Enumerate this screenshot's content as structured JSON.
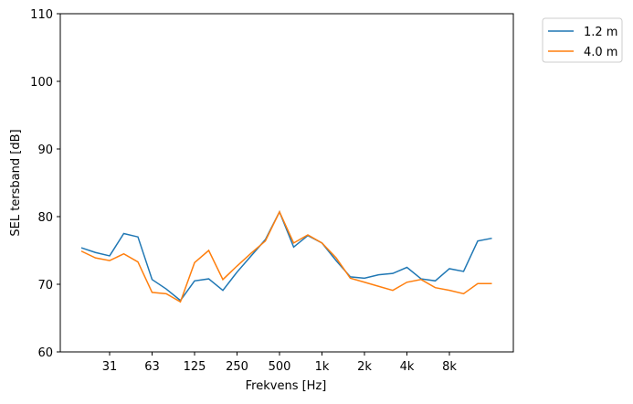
{
  "chart_data": {
    "type": "line",
    "xlabel": "Frekvens [Hz]",
    "ylabel": "SEL tersband [dB]",
    "ylim": [
      60,
      110
    ],
    "yticks": [
      60,
      70,
      80,
      90,
      100,
      110
    ],
    "x_bands": [
      "20",
      "25",
      "31.5",
      "40",
      "50",
      "63",
      "80",
      "100",
      "125",
      "160",
      "200",
      "250",
      "315",
      "400",
      "500",
      "630",
      "800",
      "1k",
      "1.25k",
      "1.6k",
      "2k",
      "2.5k",
      "3.15k",
      "4k",
      "5k",
      "6.3k",
      "8k",
      "10k",
      "12.5k",
      "16k"
    ],
    "xticks": [
      {
        "label": "31",
        "band": 2
      },
      {
        "label": "63",
        "band": 5
      },
      {
        "label": "125",
        "band": 8
      },
      {
        "label": "250",
        "band": 11
      },
      {
        "label": "500",
        "band": 14
      },
      {
        "label": "1k",
        "band": 17
      },
      {
        "label": "2k",
        "band": 20
      },
      {
        "label": "4k",
        "band": 23
      },
      {
        "label": "8k",
        "band": 26
      }
    ],
    "legend_position": "outside-top-right",
    "series": [
      {
        "name": "1.2 m",
        "color": "#1f77b4",
        "values": [
          75.4,
          74.7,
          74.2,
          77.5,
          77.0,
          70.7,
          69.3,
          67.6,
          70.5,
          70.8,
          69.1,
          71.8,
          74.2,
          76.6,
          80.7,
          75.5,
          77.2,
          76.1,
          73.5,
          71.1,
          70.9,
          71.4,
          71.6,
          72.5,
          70.8,
          70.5,
          72.3,
          71.9,
          76.4,
          76.8
        ]
      },
      {
        "name": "4.0 m",
        "color": "#ff7f0e",
        "values": [
          74.9,
          73.9,
          73.5,
          74.5,
          73.3,
          68.8,
          68.6,
          67.4,
          73.2,
          75.0,
          70.7,
          72.7,
          74.6,
          76.4,
          80.7,
          76.1,
          77.3,
          76.1,
          73.9,
          70.9,
          70.3,
          69.7,
          69.1,
          70.3,
          70.7,
          69.5,
          69.1,
          68.6,
          70.1,
          70.1
        ]
      }
    ]
  }
}
